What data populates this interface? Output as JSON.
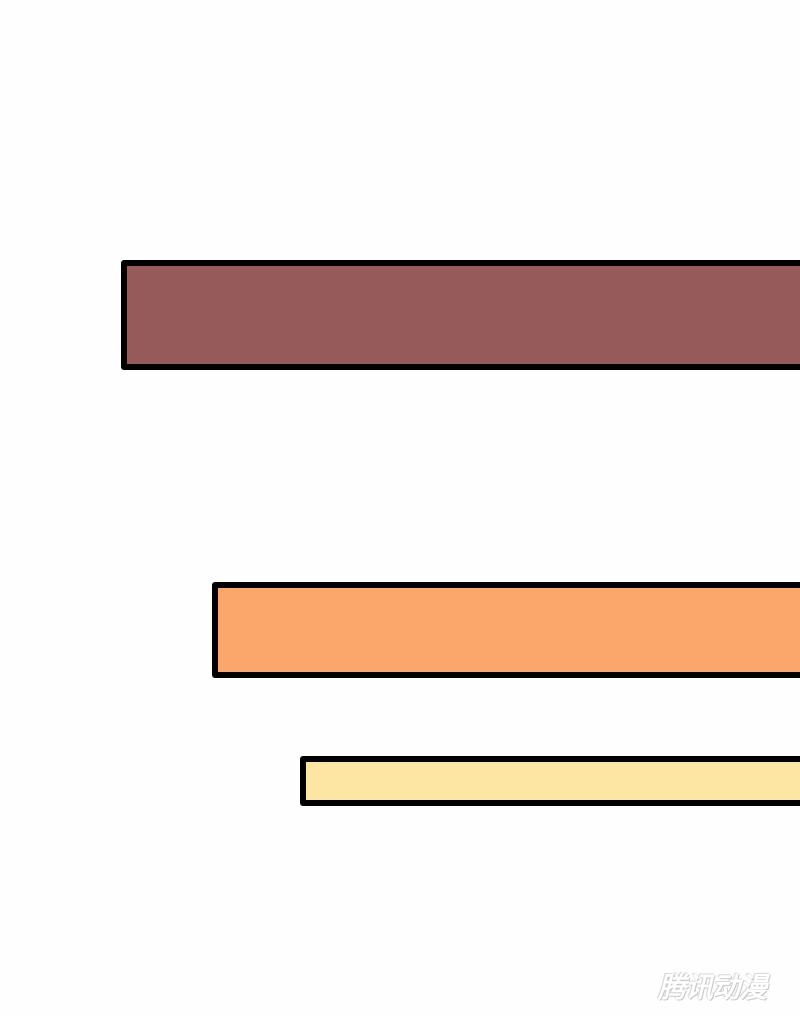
{
  "panel": {
    "bars": [
      {
        "color": "#975a5a"
      },
      {
        "color": "#fba66a"
      },
      {
        "color": "#fde6a3"
      }
    ],
    "watermark": "腾讯动漫"
  }
}
